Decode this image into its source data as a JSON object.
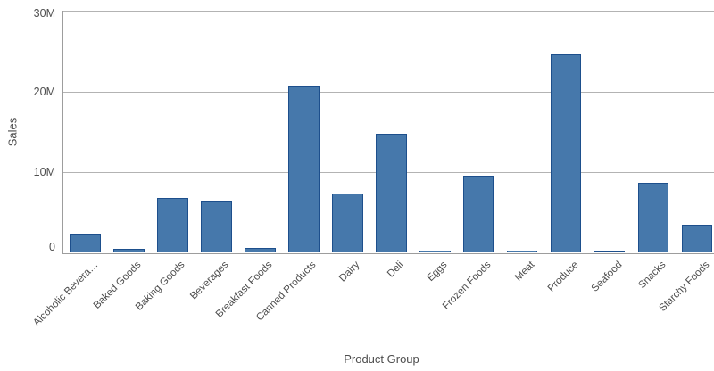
{
  "chart_data": {
    "type": "bar",
    "title": "",
    "xlabel": "Product Group",
    "ylabel": "Sales",
    "categories": [
      "Alcoholic Bevera…",
      "Baked Goods",
      "Baking Goods",
      "Beverages",
      "Breakfast Foods",
      "Canned Products",
      "Dairy",
      "Deli",
      "Eggs",
      "Frozen Foods",
      "Meat",
      "Produce",
      "Seafood",
      "Snacks",
      "Starchy Foods"
    ],
    "values_millions": [
      2.4,
      0.5,
      6.8,
      6.5,
      0.6,
      20.7,
      7.3,
      14.8,
      0.3,
      9.6,
      0.25,
      24.6,
      0.15,
      8.7,
      3.5
    ],
    "unit": "M",
    "ylim": [
      0,
      30
    ],
    "yticks": [
      {
        "value": 0,
        "label": "0"
      },
      {
        "value": 10,
        "label": "10M"
      },
      {
        "value": 20,
        "label": "20M"
      },
      {
        "value": 30,
        "label": "30M"
      }
    ],
    "grid": true,
    "legend": false,
    "colors": {
      "bar_fill": "#4678ab",
      "bar_border": "#1d4f8c",
      "gridline": "#b3b3b3",
      "axis_line": "#9d9d9d",
      "text": "#4d4d4d",
      "background": "#ffffff"
    }
  }
}
